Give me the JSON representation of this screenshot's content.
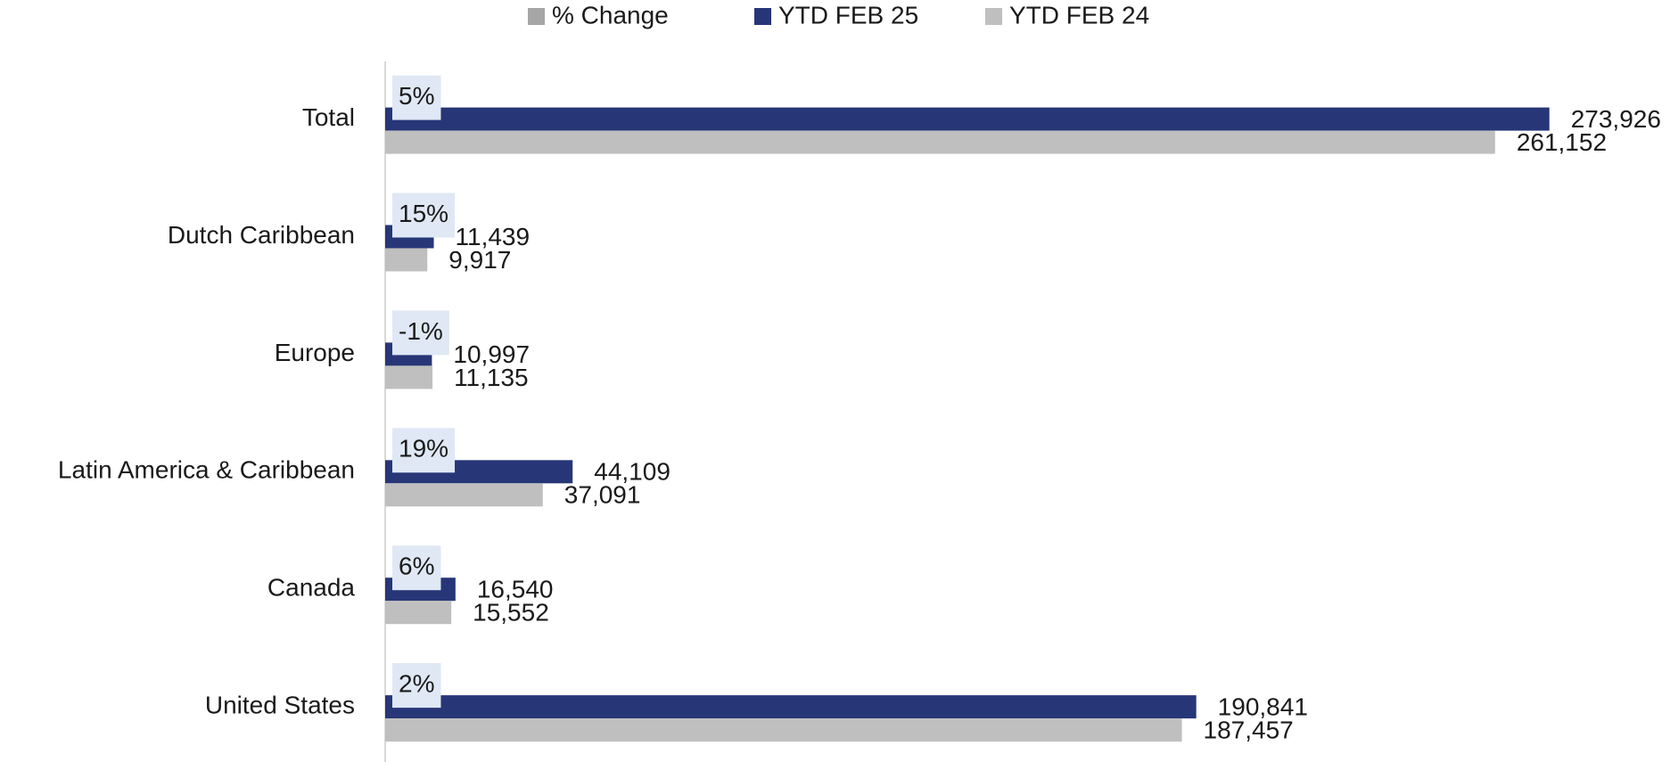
{
  "chart_data": {
    "type": "bar",
    "orientation": "horizontal",
    "categories": [
      "Total",
      "Dutch Caribbean",
      "Europe",
      "Latin America & Caribbean",
      "Canada",
      "United States"
    ],
    "series": [
      {
        "name": "% Change",
        "color": "#a6a6a6",
        "values": [
          5,
          15,
          -1,
          19,
          6,
          2
        ],
        "value_labels": [
          "5%",
          "15%",
          "-1%",
          "19%",
          "6%",
          "2%"
        ]
      },
      {
        "name": "YTD FEB 25",
        "color": "#273677",
        "values": [
          273926,
          11439,
          10997,
          44109,
          16540,
          190841
        ],
        "value_labels": [
          "273,926",
          "11,439",
          "10,997",
          "44,109",
          "16,540",
          "190,841"
        ]
      },
      {
        "name": "YTD FEB 24",
        "color": "#bfbfbf",
        "values": [
          261152,
          9917,
          11135,
          37091,
          15552,
          187457
        ],
        "value_labels": [
          "261,152",
          "9,917",
          "11,135",
          "37,091",
          "15,552",
          "187,457"
        ]
      }
    ],
    "xlim": [
      0,
      300000
    ],
    "legend": "top"
  }
}
